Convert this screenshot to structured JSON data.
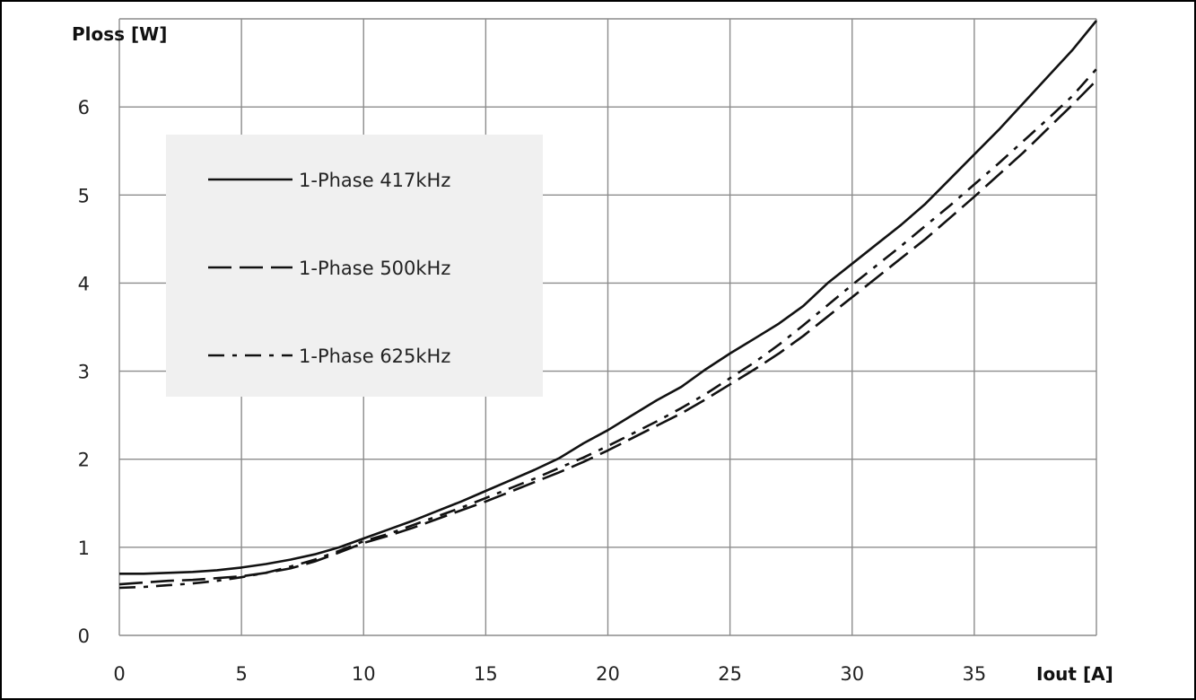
{
  "chart_data": {
    "type": "line",
    "title": "",
    "xlabel": "Iout [A]",
    "ylabel": "Ploss [W]",
    "xlim": [
      0,
      40
    ],
    "ylim": [
      0,
      7
    ],
    "xticks": [
      "0",
      "5",
      "10",
      "15",
      "20",
      "25",
      "30",
      "35"
    ],
    "yticks": [
      "0",
      "1",
      "2",
      "3",
      "4",
      "5",
      "6"
    ],
    "grid": true,
    "legend": {
      "position": "upper-left",
      "background": "#f0f0f0"
    },
    "series": [
      {
        "name": "1-Phase 417kHz",
        "style": "solid",
        "x": [
          0,
          1,
          2,
          3,
          4,
          5,
          6,
          7,
          8,
          9,
          10,
          11,
          12,
          13,
          14,
          15,
          16,
          17,
          18,
          19,
          20,
          21,
          22,
          23,
          24,
          25,
          26,
          27,
          28,
          29,
          30,
          31,
          32,
          33,
          34,
          35,
          36,
          37,
          38,
          39,
          40
        ],
        "y": [
          0.7,
          0.7,
          0.71,
          0.72,
          0.74,
          0.77,
          0.81,
          0.86,
          0.92,
          1.0,
          1.1,
          1.2,
          1.3,
          1.41,
          1.52,
          1.64,
          1.76,
          1.88,
          2.01,
          2.18,
          2.33,
          2.5,
          2.67,
          2.82,
          3.02,
          3.2,
          3.37,
          3.54,
          3.74,
          4.0,
          4.22,
          4.44,
          4.66,
          4.9,
          5.18,
          5.46,
          5.74,
          6.04,
          6.34,
          6.64,
          6.98
        ]
      },
      {
        "name": "1-Phase 500kHz",
        "style": "dashed",
        "x": [
          0,
          1,
          2,
          3,
          4,
          5,
          6,
          7,
          8,
          9,
          10,
          11,
          12,
          13,
          14,
          15,
          16,
          17,
          18,
          19,
          20,
          21,
          22,
          23,
          24,
          25,
          26,
          27,
          28,
          29,
          30,
          31,
          32,
          33,
          34,
          35,
          36,
          37,
          38,
          39,
          40
        ],
        "y": [
          0.58,
          0.6,
          0.62,
          0.63,
          0.65,
          0.67,
          0.71,
          0.76,
          0.84,
          0.94,
          1.05,
          1.13,
          1.22,
          1.32,
          1.42,
          1.52,
          1.63,
          1.74,
          1.85,
          1.97,
          2.1,
          2.24,
          2.38,
          2.52,
          2.68,
          2.85,
          3.02,
          3.2,
          3.4,
          3.62,
          3.84,
          4.06,
          4.28,
          4.5,
          4.74,
          4.98,
          5.23,
          5.48,
          5.75,
          6.02,
          6.3
        ]
      },
      {
        "name": "1-Phase 625kHz",
        "style": "dash-dot",
        "x": [
          0,
          1,
          2,
          3,
          4,
          5,
          6,
          7,
          8,
          9,
          10,
          11,
          12,
          13,
          14,
          15,
          16,
          17,
          18,
          19,
          20,
          21,
          22,
          23,
          24,
          25,
          26,
          27,
          28,
          29,
          30,
          31,
          32,
          33,
          34,
          35,
          36,
          37,
          38,
          39,
          40
        ],
        "y": [
          0.54,
          0.55,
          0.57,
          0.59,
          0.62,
          0.66,
          0.71,
          0.78,
          0.86,
          0.96,
          1.07,
          1.15,
          1.25,
          1.35,
          1.45,
          1.56,
          1.67,
          1.78,
          1.9,
          2.02,
          2.15,
          2.29,
          2.43,
          2.58,
          2.74,
          2.92,
          3.1,
          3.3,
          3.52,
          3.75,
          3.98,
          4.2,
          4.42,
          4.65,
          4.88,
          5.12,
          5.36,
          5.61,
          5.86,
          6.12,
          6.43
        ]
      }
    ]
  }
}
